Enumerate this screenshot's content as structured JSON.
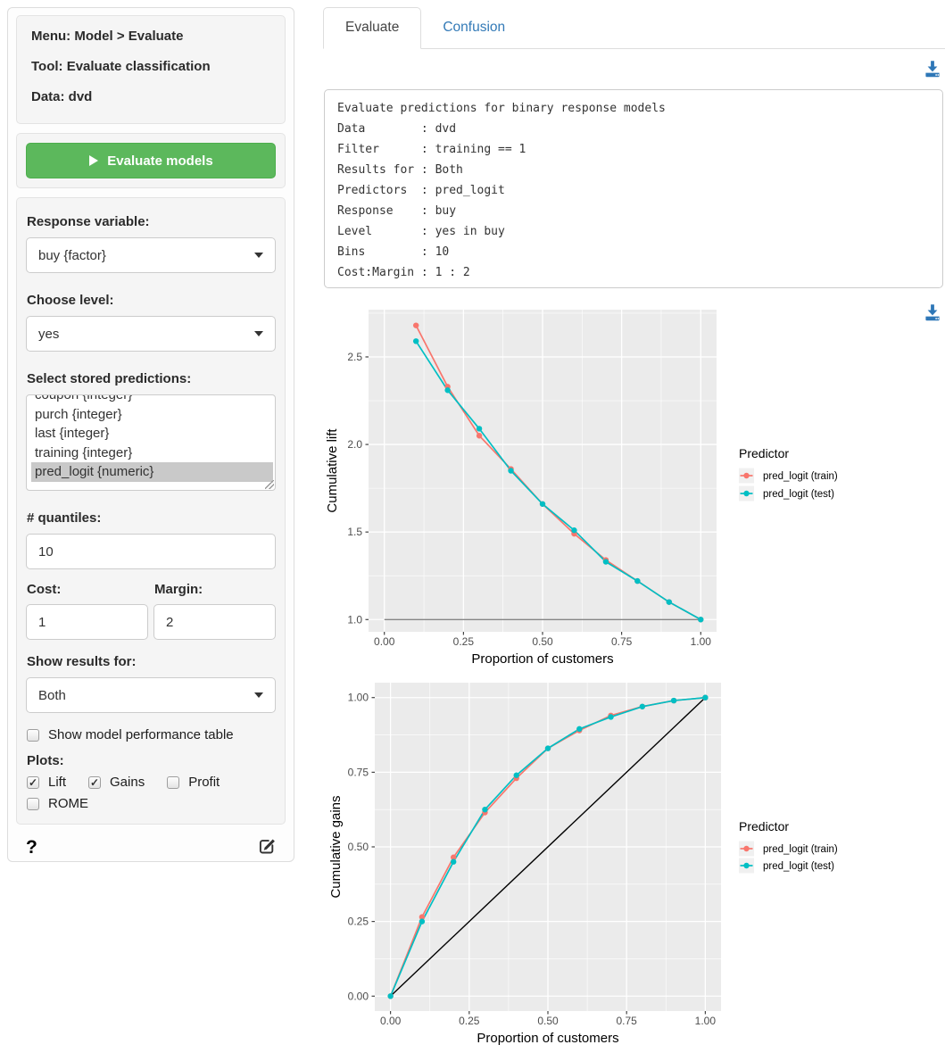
{
  "colors": {
    "button_green": "#5cb85c",
    "link_blue": "#337ab7",
    "download_blue": "#2e77b7",
    "train": "#F8766D",
    "test": "#00BFC4",
    "panel_gray": "#EBEBEB",
    "selected_option_gray": "#c9c9c9"
  },
  "icons": {
    "check": "✓",
    "help": "?",
    "play": "play-icon",
    "download": "download-icon",
    "edit": "edit-report-icon",
    "caret": "chevron-down-icon"
  },
  "sidebar": {
    "header": {
      "menu": "Menu: Model > Evaluate",
      "tool": "Tool: Evaluate classification",
      "data": "Data: dvd"
    },
    "evaluate_button": "Evaluate models",
    "response_variable": {
      "label": "Response variable:",
      "value": "buy {factor}"
    },
    "choose_level": {
      "label": "Choose level:",
      "value": "yes"
    },
    "predictions": {
      "label": "Select stored predictions:",
      "options": [
        "coupon {integer}",
        "purch {integer}",
        "last {integer}",
        "training {integer}",
        "pred_logit {numeric}"
      ],
      "selected": "pred_logit {numeric}"
    },
    "quantiles": {
      "label": "# quantiles:",
      "value": "10"
    },
    "cost": {
      "label": "Cost:",
      "value": "1"
    },
    "margin": {
      "label": "Margin:",
      "value": "2"
    },
    "show_results": {
      "label": "Show results for:",
      "value": "Both"
    },
    "performance_table": {
      "label": "Show model performance table",
      "checked": false
    },
    "plots": {
      "label": "Plots:",
      "options": [
        {
          "label": "Lift",
          "checked": true
        },
        {
          "label": "Gains",
          "checked": true
        },
        {
          "label": "Profit",
          "checked": false
        },
        {
          "label": "ROME",
          "checked": false
        }
      ]
    }
  },
  "tabs": [
    {
      "label": "Evaluate",
      "active": true
    },
    {
      "label": "Confusion",
      "active": false
    }
  ],
  "summary_text": "Evaluate predictions for binary response models\nData        : dvd\nFilter      : training == 1\nResults for : Both\nPredictors  : pred_logit\nResponse    : buy\nLevel       : yes in buy\nBins        : 10\nCost:Margin : 1 : 2",
  "chart_data": [
    {
      "type": "line",
      "title": "",
      "xlabel": "Proportion of customers",
      "ylabel": "Cumulative lift",
      "xlim": [
        -0.05,
        1.05
      ],
      "ylim": [
        0.93,
        2.77
      ],
      "xticks": [
        0,
        0.25,
        0.5,
        0.75,
        1
      ],
      "xtick_labels": [
        "0.00",
        "0.25",
        "0.50",
        "0.75",
        "1.00"
      ],
      "yticks": [
        1.0,
        1.5,
        2.0,
        2.5
      ],
      "ytick_labels": [
        "1.0",
        "1.5",
        "2.0",
        "2.5"
      ],
      "grid": true,
      "x": [
        0.1,
        0.2,
        0.3,
        0.4,
        0.5,
        0.6,
        0.7,
        0.8,
        0.9,
        1.0
      ],
      "series": [
        {
          "name": "pred_logit (train)",
          "color": "#F8766D",
          "values": [
            2.68,
            2.33,
            2.05,
            1.86,
            1.66,
            1.49,
            1.34,
            1.22,
            1.1,
            1.0
          ]
        },
        {
          "name": "pred_logit (test)",
          "color": "#00BFC4",
          "values": [
            2.59,
            2.31,
            2.09,
            1.85,
            1.66,
            1.51,
            1.33,
            1.22,
            1.1,
            1.0
          ]
        }
      ],
      "refline": {
        "x1": 0,
        "y1": 1.0,
        "x2": 1,
        "y2": 1.0,
        "color": "#858585"
      },
      "legend": {
        "title": "Predictor",
        "position": "right"
      }
    },
    {
      "type": "line",
      "title": "",
      "xlabel": "Proportion of customers",
      "ylabel": "Cumulative gains",
      "xlim": [
        -0.05,
        1.05
      ],
      "ylim": [
        -0.05,
        1.05
      ],
      "xticks": [
        0,
        0.25,
        0.5,
        0.75,
        1
      ],
      "xtick_labels": [
        "0.00",
        "0.25",
        "0.50",
        "0.75",
        "1.00"
      ],
      "yticks": [
        0,
        0.25,
        0.5,
        0.75,
        1
      ],
      "ytick_labels": [
        "0.00",
        "0.25",
        "0.50",
        "0.75",
        "1.00"
      ],
      "grid": true,
      "x": [
        0,
        0.1,
        0.2,
        0.3,
        0.4,
        0.5,
        0.6,
        0.7,
        0.8,
        0.9,
        1.0
      ],
      "series": [
        {
          "name": "pred_logit (train)",
          "color": "#F8766D",
          "values": [
            0,
            0.265,
            0.465,
            0.615,
            0.73,
            0.83,
            0.89,
            0.94,
            0.97,
            0.99,
            1.0
          ]
        },
        {
          "name": "pred_logit (test)",
          "color": "#00BFC4",
          "values": [
            0,
            0.25,
            0.45,
            0.625,
            0.74,
            0.83,
            0.895,
            0.935,
            0.97,
            0.99,
            1.0
          ]
        }
      ],
      "refline": {
        "x1": 0,
        "y1": 0,
        "x2": 1,
        "y2": 1,
        "color": "#000000"
      },
      "legend": {
        "title": "Predictor",
        "position": "right"
      }
    }
  ]
}
